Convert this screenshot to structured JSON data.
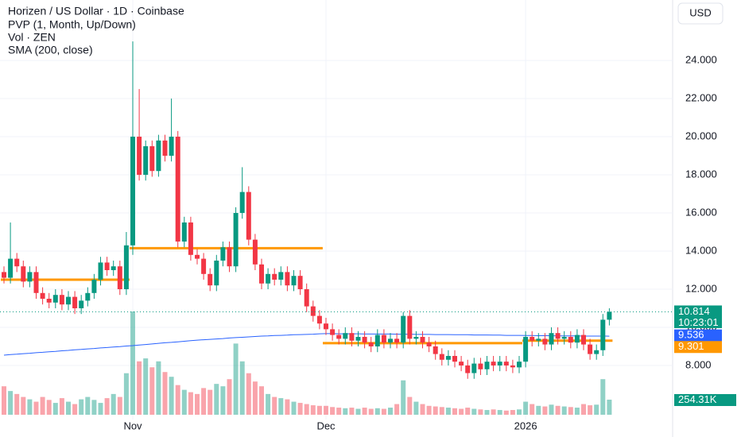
{
  "header": {
    "title": "Horizen / US Dollar · 1D · Coinbase",
    "indicators": [
      "PVP (1, Month, Up/Down)",
      "Vol · ZEN",
      "SMA (200, close)"
    ],
    "currency": "USD"
  },
  "chart_data": {
    "type": "candlestick",
    "categories": [
      null,
      null,
      null,
      null,
      null,
      null,
      null,
      null,
      null,
      null,
      null,
      null,
      null,
      null,
      null,
      null,
      null,
      null,
      null,
      null,
      "Nov",
      null,
      null,
      null,
      null,
      null,
      null,
      null,
      null,
      null,
      null,
      null,
      null,
      null,
      null,
      null,
      null,
      null,
      null,
      null,
      null,
      null,
      null,
      null,
      null,
      null,
      null,
      null,
      null,
      null,
      "Dec",
      null,
      null,
      null,
      null,
      null,
      null,
      null,
      null,
      null,
      null,
      null,
      null,
      null,
      null,
      null,
      null,
      null,
      null,
      null,
      null,
      null,
      null,
      null,
      null,
      null,
      null,
      null,
      null,
      null,
      null,
      "2026",
      null,
      null,
      null,
      null,
      null,
      null,
      null,
      null,
      null,
      null,
      null,
      null,
      null
    ],
    "open": [
      12.9,
      12.6,
      13.6,
      13.2,
      12.4,
      12.9,
      11.8,
      11.5,
      11.3,
      11.7,
      11.2,
      11.6,
      11.0,
      11.4,
      11.8,
      12.5,
      13.4,
      13.0,
      13.2,
      12.0,
      14.3,
      20.0,
      18.0,
      19.5,
      18.2,
      19.8,
      19.0,
      20.0,
      14.5,
      15.5,
      13.8,
      13.6,
      12.8,
      12.2,
      13.5,
      14.2,
      13.2,
      16.0,
      17.1,
      14.6,
      13.3,
      12.3,
      12.8,
      12.5,
      12.9,
      12.2,
      12.7,
      12.0,
      11.1,
      10.6,
      10.2,
      9.9,
      9.6,
      9.4,
      9.7,
      9.3,
      9.5,
      9.2,
      9.0,
      9.6,
      9.2,
      9.4,
      9.2,
      10.6,
      9.4,
      9.5,
      9.2,
      9.0,
      8.6,
      8.3,
      8.5,
      8.2,
      8.0,
      7.6,
      8.1,
      7.8,
      8.2,
      8.0,
      8.2,
      8.0,
      7.9,
      8.2,
      9.5,
      9.3,
      9.4,
      9.1,
      9.7,
      9.4,
      9.5,
      9.2,
      9.6,
      9.1,
      8.6,
      8.8,
      10.4
    ],
    "high": [
      13.2,
      15.5,
      13.9,
      13.5,
      13.2,
      13.2,
      12.1,
      11.8,
      12.0,
      12.0,
      11.9,
      11.9,
      11.7,
      12.1,
      12.8,
      13.7,
      13.7,
      13.5,
      13.5,
      15.0,
      25.0,
      22.5,
      19.8,
      19.8,
      20.1,
      20.1,
      22.0,
      20.3,
      15.8,
      15.8,
      14.1,
      13.9,
      13.1,
      13.8,
      14.5,
      14.5,
      16.3,
      18.4,
      17.4,
      14.9,
      13.6,
      13.1,
      13.1,
      13.2,
      13.2,
      13.0,
      13.0,
      12.3,
      11.4,
      10.9,
      10.5,
      10.2,
      9.9,
      10.0,
      10.0,
      9.8,
      9.8,
      9.5,
      9.9,
      9.9,
      9.7,
      9.7,
      10.8,
      10.9,
      9.8,
      9.8,
      9.5,
      9.3,
      8.9,
      8.8,
      8.8,
      8.5,
      8.3,
      8.4,
      8.4,
      8.5,
      8.5,
      8.5,
      8.5,
      8.3,
      8.5,
      9.8,
      9.8,
      9.7,
      9.7,
      10.0,
      10.0,
      9.8,
      9.8,
      9.9,
      9.9,
      9.4,
      9.1,
      10.7,
      11.0
    ],
    "low": [
      12.3,
      12.3,
      12.9,
      12.1,
      12.1,
      11.5,
      11.2,
      11.0,
      11.0,
      10.9,
      10.9,
      10.7,
      10.7,
      11.1,
      11.5,
      12.2,
      12.7,
      12.7,
      11.7,
      11.7,
      13.8,
      17.7,
      17.7,
      17.9,
      17.9,
      18.7,
      18.7,
      14.2,
      14.2,
      13.5,
      13.3,
      12.5,
      11.9,
      11.9,
      13.2,
      12.9,
      12.9,
      15.7,
      14.3,
      13.0,
      12.0,
      12.0,
      12.2,
      12.2,
      11.9,
      11.9,
      11.7,
      10.8,
      10.3,
      9.9,
      9.6,
      9.3,
      9.1,
      9.1,
      9.0,
      9.0,
      8.9,
      8.7,
      8.7,
      8.9,
      8.9,
      8.9,
      8.9,
      9.1,
      9.1,
      8.9,
      8.7,
      8.3,
      8.0,
      8.0,
      7.9,
      7.7,
      7.3,
      7.3,
      7.5,
      7.5,
      7.7,
      7.7,
      7.7,
      7.6,
      7.6,
      7.9,
      9.0,
      9.0,
      8.8,
      8.8,
      9.1,
      9.1,
      8.9,
      8.9,
      8.8,
      8.3,
      8.3,
      8.5,
      10.1
    ],
    "close": [
      12.6,
      13.6,
      13.2,
      12.4,
      12.9,
      11.8,
      11.5,
      11.3,
      11.7,
      11.2,
      11.6,
      11.0,
      11.4,
      11.8,
      12.5,
      13.4,
      13.0,
      13.2,
      12.0,
      14.3,
      20.0,
      18.0,
      19.5,
      18.2,
      19.8,
      19.0,
      20.0,
      14.5,
      15.5,
      13.8,
      13.6,
      12.8,
      12.2,
      13.5,
      14.2,
      13.2,
      16.0,
      17.1,
      14.6,
      13.3,
      12.3,
      12.8,
      12.5,
      12.9,
      12.2,
      12.7,
      12.0,
      11.1,
      10.6,
      10.2,
      9.9,
      9.6,
      9.4,
      9.7,
      9.3,
      9.5,
      9.2,
      9.0,
      9.6,
      9.2,
      9.4,
      9.2,
      10.6,
      9.4,
      9.5,
      9.2,
      9.0,
      8.6,
      8.3,
      8.5,
      8.2,
      8.0,
      7.6,
      8.1,
      7.8,
      8.2,
      8.0,
      8.2,
      8.0,
      7.9,
      8.2,
      9.5,
      9.3,
      9.4,
      9.1,
      9.7,
      9.4,
      9.5,
      9.2,
      9.6,
      9.1,
      8.6,
      8.8,
      10.4,
      10.814
    ],
    "up_color": "#089981",
    "down_color": "#f23645",
    "ylim": [
      5.29,
      27.17
    ],
    "yticks": [
      {
        "value": 8,
        "label": "8.000"
      },
      {
        "value": 10,
        "label": "10.000"
      },
      {
        "value": 12,
        "label": "12.000"
      },
      {
        "value": 14,
        "label": "14.000"
      },
      {
        "value": 16,
        "label": "16.000"
      },
      {
        "value": 18,
        "label": "18.000"
      },
      {
        "value": 20,
        "label": "20.000"
      },
      {
        "value": 22,
        "label": "22.000"
      },
      {
        "value": 24,
        "label": "24.000"
      }
    ],
    "grid": true,
    "countdown": "10:23:01",
    "volume": {
      "values": [
        480000,
        400000,
        350000,
        300000,
        260000,
        220000,
        300000,
        250000,
        200000,
        280000,
        220000,
        180000,
        260000,
        300000,
        250000,
        200000,
        280000,
        350000,
        300000,
        700000,
        1740000,
        900000,
        950000,
        800000,
        900000,
        720000,
        640000,
        500000,
        420000,
        380000,
        350000,
        450000,
        420000,
        520000,
        480000,
        600000,
        1200000,
        900000,
        700000,
        560000,
        480000,
        350000,
        300000,
        280000,
        260000,
        220000,
        200000,
        180000,
        160000,
        150000,
        150000,
        130000,
        120000,
        110000,
        120000,
        100000,
        120000,
        100000,
        110000,
        100000,
        120000,
        180000,
        580000,
        300000,
        220000,
        180000,
        150000,
        140000,
        130000,
        120000,
        110000,
        100000,
        120000,
        100000,
        90000,
        80000,
        90000,
        80000,
        70000,
        80000,
        90000,
        220000,
        180000,
        150000,
        140000,
        170000,
        150000,
        140000,
        130000,
        120000,
        180000,
        160000,
        170000,
        600000,
        254310
      ],
      "ylim": [
        0,
        6990000
      ],
      "last_label": "254.31K"
    },
    "sma": {
      "color": "#2962ff",
      "values": [
        8.54,
        8.57,
        8.59,
        8.62,
        8.64,
        8.67,
        8.69,
        8.72,
        8.74,
        8.77,
        8.79,
        8.82,
        8.84,
        8.87,
        8.89,
        8.92,
        8.94,
        8.97,
        8.99,
        9.02,
        9.04,
        9.07,
        9.1,
        9.13,
        9.16,
        9.19,
        9.21,
        9.24,
        9.27,
        9.3,
        9.33,
        9.35,
        9.37,
        9.39,
        9.41,
        9.44,
        9.46,
        9.48,
        9.5,
        9.52,
        9.54,
        9.55,
        9.57,
        9.58,
        9.59,
        9.61,
        9.62,
        9.63,
        9.64,
        9.66,
        9.67,
        9.67,
        9.66,
        9.66,
        9.66,
        9.66,
        9.65,
        9.65,
        9.65,
        9.65,
        9.65,
        9.64,
        9.64,
        9.64,
        9.63,
        9.63,
        9.63,
        9.62,
        9.62,
        9.62,
        9.61,
        9.61,
        9.61,
        9.6,
        9.6,
        9.6,
        9.59,
        9.59,
        9.58,
        9.58,
        9.58,
        9.57,
        9.57,
        9.56,
        9.56,
        9.56,
        9.55,
        9.55,
        9.55,
        9.55,
        9.54,
        9.54,
        9.54,
        9.54,
        9.536
      ]
    },
    "poc": {
      "color": "#ff9800",
      "values": [
        12.5,
        14.15,
        9.17,
        9.301
      ]
    }
  }
}
